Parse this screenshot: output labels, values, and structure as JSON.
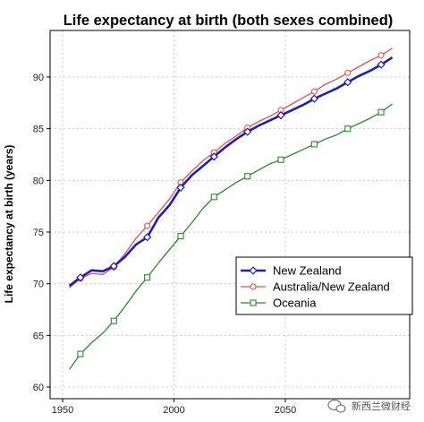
{
  "chart_data": {
    "type": "line",
    "title": "Life expectancy at birth (both sexes combined)",
    "xlabel": "",
    "ylabel": "Life expectancy at birth (years)",
    "xlim": [
      1950,
      2100
    ],
    "ylim": [
      60,
      94
    ],
    "xticks": [
      1950,
      2000,
      2050
    ],
    "yticks": [
      60,
      65,
      70,
      75,
      80,
      85,
      90
    ],
    "grid": true,
    "legend_position": "lower-right",
    "series": [
      {
        "name": "New Zealand",
        "color": "#1f1fb4",
        "marker": "diamond",
        "x": [
          1953,
          1958,
          1963,
          1968,
          1973,
          1978,
          1983,
          1988,
          1993,
          1998,
          2003,
          2008,
          2013,
          2018,
          2023,
          2028,
          2033,
          2038,
          2043,
          2048,
          2053,
          2058,
          2063,
          2068,
          2073,
          2078,
          2083,
          2088,
          2093,
          2098
        ],
        "y": [
          69.8,
          70.6,
          71.3,
          71.2,
          71.7,
          72.6,
          73.8,
          74.5,
          76.4,
          77.6,
          79.3,
          80.5,
          81.4,
          82.3,
          83.2,
          84.0,
          84.7,
          85.3,
          85.8,
          86.3,
          86.8,
          87.3,
          87.9,
          88.4,
          88.9,
          89.5,
          90.1,
          90.6,
          91.2,
          91.9
        ]
      },
      {
        "name": "Australia/New Zealand",
        "color": "#e05050",
        "marker": "circle",
        "x": [
          1953,
          1958,
          1963,
          1968,
          1973,
          1978,
          1983,
          1988,
          1993,
          1998,
          2003,
          2008,
          2013,
          2018,
          2023,
          2028,
          2033,
          2038,
          2043,
          2048,
          2053,
          2058,
          2063,
          2068,
          2073,
          2078,
          2083,
          2088,
          2093,
          2098
        ],
        "y": [
          69.6,
          70.5,
          71.0,
          70.9,
          71.6,
          72.9,
          74.4,
          75.6,
          76.9,
          78.2,
          79.8,
          80.9,
          81.9,
          82.7,
          83.6,
          84.3,
          85.1,
          85.7,
          86.2,
          86.8,
          87.4,
          88.0,
          88.6,
          89.3,
          89.8,
          90.4,
          91.0,
          91.6,
          92.1,
          92.8
        ]
      },
      {
        "name": "Oceania",
        "color": "#2a8a2a",
        "marker": "square",
        "x": [
          1953,
          1958,
          1963,
          1968,
          1973,
          1978,
          1983,
          1988,
          1993,
          1998,
          2003,
          2008,
          2013,
          2018,
          2023,
          2028,
          2033,
          2038,
          2043,
          2048,
          2053,
          2058,
          2063,
          2068,
          2073,
          2078,
          2083,
          2088,
          2093,
          2098
        ],
        "y": [
          61.7,
          63.2,
          64.3,
          65.2,
          66.4,
          67.8,
          69.3,
          70.6,
          72.0,
          73.3,
          74.6,
          75.9,
          77.3,
          78.4,
          79.1,
          79.8,
          80.4,
          81.0,
          81.6,
          82.0,
          82.5,
          83.0,
          83.5,
          84.0,
          84.4,
          85.0,
          85.5,
          86.0,
          86.6,
          87.4
        ]
      }
    ]
  },
  "watermark": "新西兰微财经"
}
